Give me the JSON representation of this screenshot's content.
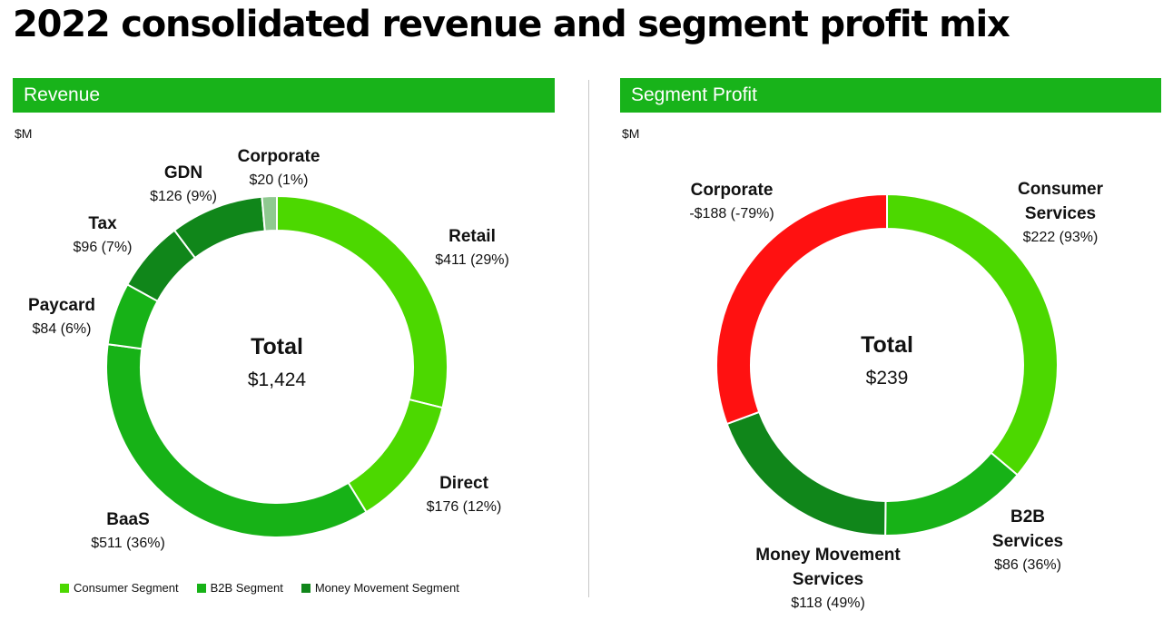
{
  "title": "2022 consolidated revenue and segment profit mix",
  "colors": {
    "consumer": "#4cd800",
    "b2b": "#17b217",
    "money_movement": "#10861a",
    "corporate_revenue": "#8fc990",
    "corporate_profit": "#ff1111",
    "header": "#18b31a"
  },
  "legend": [
    {
      "label": "Consumer Segment",
      "color": "#4cd800"
    },
    {
      "label": "B2B Segment",
      "color": "#17b217"
    },
    {
      "label": "Money Movement Segment",
      "color": "#10861a"
    }
  ],
  "chart_data": [
    {
      "type": "pie",
      "subtype": "donut",
      "title": "Revenue",
      "unit": "$M",
      "center_title": "Total",
      "center_value": "$1,424",
      "total": 1424,
      "slices": [
        {
          "name": [
            "Retail"
          ],
          "value": 411,
          "value_label": "$411 (29%)",
          "segment": "Consumer Segment",
          "color": "#4cd800"
        },
        {
          "name": [
            "Direct"
          ],
          "value": 176,
          "value_label": "$176 (12%)",
          "segment": "Consumer Segment",
          "color": "#4cd800"
        },
        {
          "name": [
            "BaaS"
          ],
          "value": 511,
          "value_label": "$511 (36%)",
          "segment": "B2B Segment",
          "color": "#17b217"
        },
        {
          "name": [
            "Paycard"
          ],
          "value": 84,
          "value_label": "$84 (6%)",
          "segment": "B2B Segment",
          "color": "#17b217"
        },
        {
          "name": [
            "Tax"
          ],
          "value": 96,
          "value_label": "$96 (7%)",
          "segment": "Money Movement Segment",
          "color": "#10861a"
        },
        {
          "name": [
            "GDN"
          ],
          "value": 126,
          "value_label": "$126 (9%)",
          "segment": "Money Movement Segment",
          "color": "#10861a"
        },
        {
          "name": [
            "Corporate"
          ],
          "value": 20,
          "value_label": "$20 (1%)",
          "segment": "Corporate",
          "color": "#8fc990"
        }
      ]
    },
    {
      "type": "pie",
      "subtype": "donut",
      "title": "Segment Profit",
      "unit": "$M",
      "center_title": "Total",
      "center_value": "$239",
      "total": 239,
      "slices": [
        {
          "name": [
            "Consumer",
            "Services"
          ],
          "value": 222,
          "value_label": "$222 (93%)",
          "color": "#4cd800"
        },
        {
          "name": [
            "B2B",
            "Services"
          ],
          "value": 86,
          "value_label": "$86 (36%)",
          "color": "#17b217"
        },
        {
          "name": [
            "Money Movement",
            "Services"
          ],
          "value": 118,
          "value_label": "$118 (49%)",
          "color": "#10861a"
        },
        {
          "name": [
            "Corporate"
          ],
          "value": -188,
          "value_label": "-$188 (-79%)",
          "color": "#ff1111"
        }
      ]
    }
  ]
}
